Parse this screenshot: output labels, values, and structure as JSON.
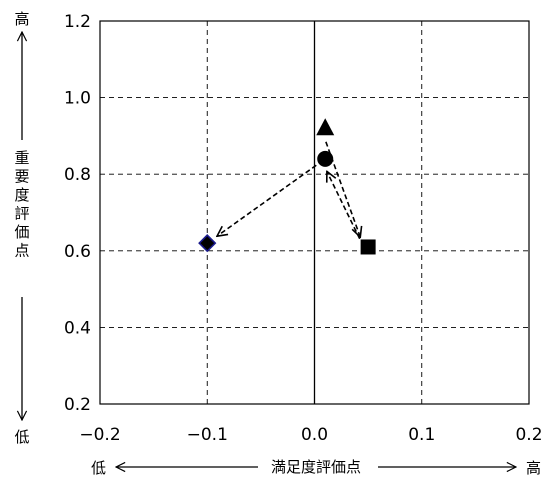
{
  "chart_data": {
    "type": "scatter",
    "xlim": [
      -0.2,
      0.2
    ],
    "ylim": [
      0.2,
      1.2
    ],
    "x_ticks": [
      -0.2,
      -0.1,
      0.0,
      0.1,
      0.2
    ],
    "y_ticks": [
      0.2,
      0.4,
      0.6,
      0.8,
      1.0,
      1.2
    ],
    "x_tick_labels": [
      "−0.2",
      "−0.1",
      "0.0",
      "0.1",
      "0.2"
    ],
    "y_tick_labels": [
      "0.2",
      "0.4",
      "0.6",
      "0.8",
      "1.0",
      "1.2"
    ],
    "grid": "dashed",
    "xlabel": "満足度評価点",
    "xlabel_low": "低",
    "xlabel_high": "高",
    "ylabel": "重要度評価点",
    "ylabel_low": "低",
    "ylabel_high": "高",
    "points": [
      {
        "id": "triangle",
        "marker": "triangle",
        "x": 0.01,
        "y": 0.92
      },
      {
        "id": "circle",
        "marker": "circle",
        "x": 0.01,
        "y": 0.84
      },
      {
        "id": "square",
        "marker": "square",
        "x": 0.05,
        "y": 0.61
      },
      {
        "id": "diamond",
        "marker": "diamond",
        "x": -0.1,
        "y": 0.62
      }
    ],
    "arrows": [
      {
        "from": "triangle",
        "to": "square"
      },
      {
        "from": "square",
        "to": "circle"
      },
      {
        "from": "circle",
        "to": "diamond"
      }
    ]
  }
}
